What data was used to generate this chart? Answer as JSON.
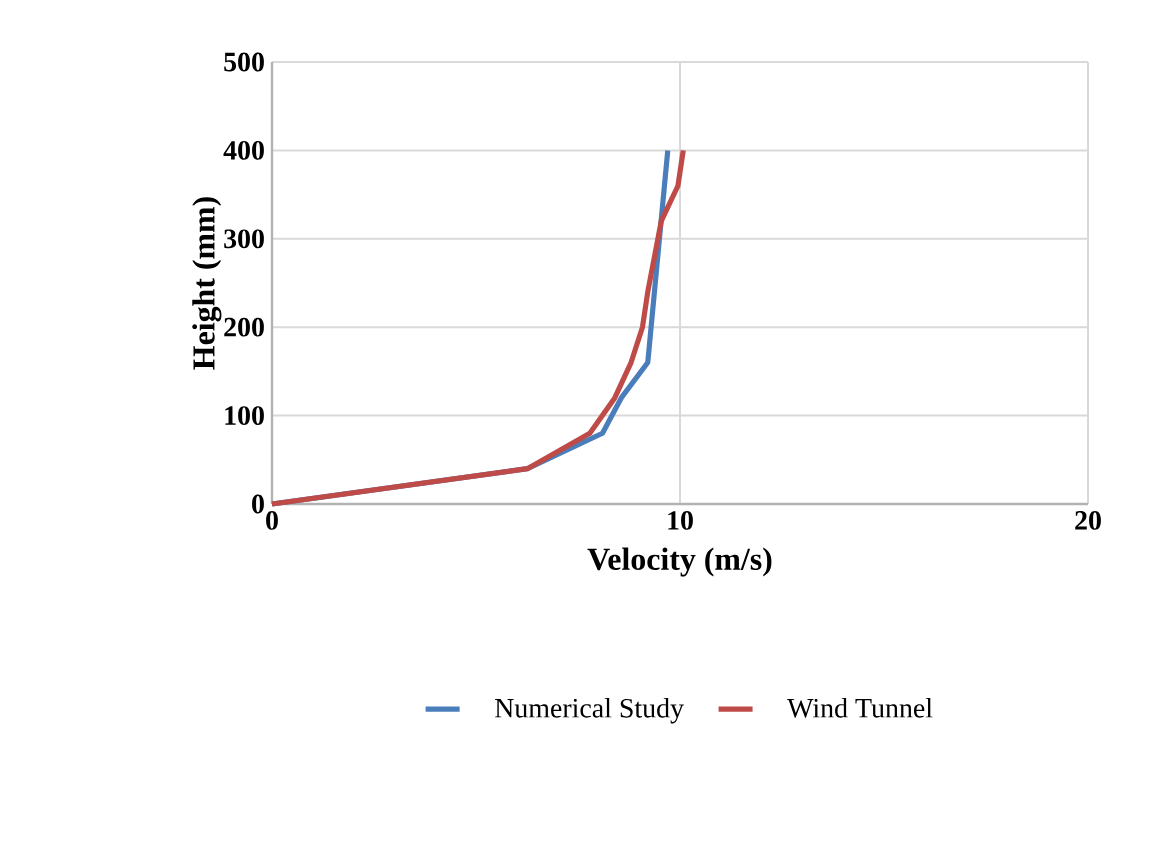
{
  "chart_data": {
    "type": "line",
    "xlabel": "Velocity (m/s)",
    "ylabel": "Height (mm)",
    "xlim": [
      0,
      20
    ],
    "ylim": [
      0,
      500
    ],
    "xticks": [
      0,
      10,
      20
    ],
    "yticks": [
      0,
      100,
      200,
      300,
      400,
      500
    ],
    "grid": true,
    "legend": "bottom",
    "series": [
      {
        "name": "Numerical Study",
        "color": "#4a7ebb",
        "x": [
          0,
          6.26,
          8.1,
          8.56,
          9.21,
          9.7
        ],
        "values": [
          0,
          40,
          80,
          120,
          160,
          400
        ]
      },
      {
        "name": "Wind Tunnel",
        "color": "#be4b48",
        "x": [
          0,
          6.26,
          7.79,
          8.4,
          8.8,
          9.08,
          9.21,
          9.54,
          9.95,
          10.08
        ],
        "values": [
          0,
          40,
          80,
          120,
          160,
          200,
          240,
          320,
          360,
          400
        ]
      }
    ]
  }
}
